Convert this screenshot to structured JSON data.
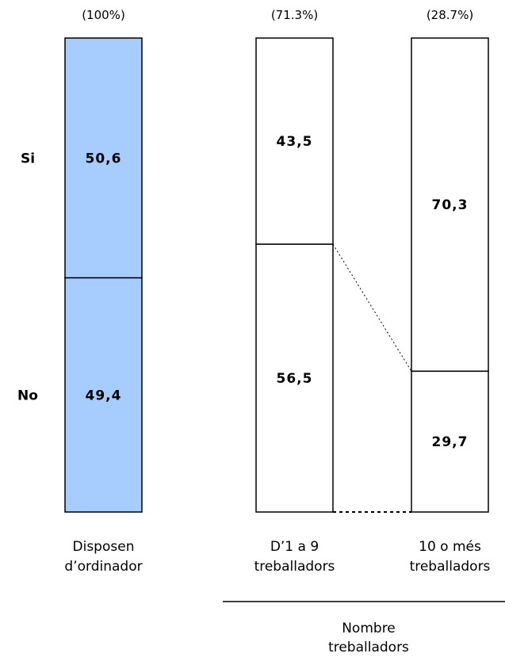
{
  "chart_data": {
    "type": "bar",
    "stacked": true,
    "percent_stacked": true,
    "rows": [
      "Si",
      "No"
    ],
    "bars": [
      {
        "label_lines": [
          "Disposen",
          "d’ordinador"
        ],
        "share": "(100%)",
        "segments": [
          50.6,
          49.4
        ],
        "segment_labels": [
          "50,6",
          "49,4"
        ],
        "fill": "#a6cdfd"
      },
      {
        "label_lines": [
          "D’1 a 9",
          "treballadors"
        ],
        "share": "(71.3%)",
        "segments": [
          43.5,
          56.5
        ],
        "segment_labels": [
          "43,5",
          "56,5"
        ],
        "fill": "#ffffff"
      },
      {
        "label_lines": [
          "10 o més",
          "treballadors"
        ],
        "share": "(28.7%)",
        "segments": [
          70.3,
          29.7
        ],
        "segment_labels": [
          "70,3",
          "29,7"
        ],
        "fill": "#ffffff"
      }
    ],
    "group_label_lines": [
      "Nombre",
      "treballadors"
    ],
    "ylim": [
      0,
      100
    ],
    "grid": false,
    "legend": "none"
  }
}
